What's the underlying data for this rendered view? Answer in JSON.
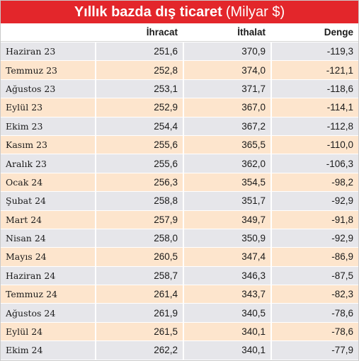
{
  "title": "Yıllık bazda dış ticaret",
  "title_unit": "(Milyar $)",
  "colors": {
    "title_bar": "#e3262b",
    "row_gray": "#e6e6ea",
    "row_peach": "#fde5cd"
  },
  "chart_data": {
    "type": "table",
    "title": "Yıllık bazda dış ticaret (Milyar $)",
    "columns": [
      "",
      "İhracat",
      "İthalat",
      "Denge"
    ],
    "rows": [
      [
        "Haziran 23",
        "251,6",
        "370,9",
        "-119,3"
      ],
      [
        "Temmuz 23",
        "252,8",
        "374,0",
        "-121,1"
      ],
      [
        "Ağustos 23",
        "253,1",
        "371,7",
        "-118,6"
      ],
      [
        "Eylül 23",
        "252,9",
        "367,0",
        "-114,1"
      ],
      [
        "Ekim 23",
        "254,4",
        "367,2",
        "-112,8"
      ],
      [
        "Kasım 23",
        "255,6",
        "365,5",
        "-110,0"
      ],
      [
        "Aralık 23",
        "255,6",
        "362,0",
        "-106,3"
      ],
      [
        "Ocak 24",
        "256,3",
        "354,5",
        "-98,2"
      ],
      [
        "Şubat 24",
        "258,8",
        "351,7",
        "-92,9"
      ],
      [
        "Mart 24",
        "257,9",
        "349,7",
        "-91,8"
      ],
      [
        "Nisan 24",
        "258,0",
        "350,9",
        "-92,9"
      ],
      [
        "Mayıs 24",
        "260,5",
        "347,4",
        "-86,9"
      ],
      [
        "Haziran 24",
        "258,7",
        "346,3",
        "-87,5"
      ],
      [
        "Temmuz 24",
        "261,4",
        "343,7",
        "-82,3"
      ],
      [
        "Ağustos 24",
        "261,9",
        "340,5",
        "-78,6"
      ],
      [
        "Eylül 24",
        "261,5",
        "340,1",
        "-78,6"
      ],
      [
        "Ekim 24",
        "262,2",
        "340,1",
        "-77,9"
      ]
    ]
  }
}
